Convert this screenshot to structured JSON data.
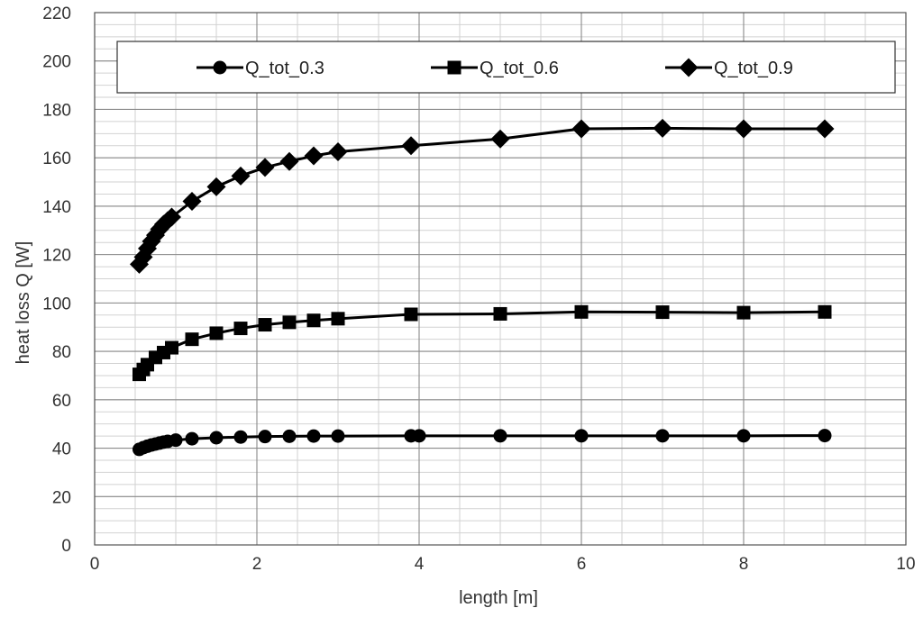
{
  "chart_data": {
    "type": "line",
    "xlabel": "length [m]",
    "ylabel": "heat loss Q [W]",
    "xlim": [
      0,
      10
    ],
    "ylim": [
      0,
      220
    ],
    "x_ticks": [
      "0",
      "2",
      "4",
      "6",
      "8",
      "10"
    ],
    "y_ticks": [
      "0",
      "20",
      "40",
      "60",
      "80",
      "100",
      "120",
      "140",
      "160",
      "180",
      "200",
      "220"
    ],
    "grid": true,
    "legend_position": "top",
    "series": [
      {
        "name": "Q_tot_0.3",
        "marker": "circle",
        "color": "#000000",
        "x": [
          0.55,
          0.6,
          0.65,
          0.7,
          0.75,
          0.8,
          0.85,
          0.9,
          1.0,
          1.2,
          1.5,
          1.8,
          2.1,
          2.4,
          2.7,
          3.0,
          3.9,
          4.0,
          5.0,
          6.0,
          7.0,
          8.0,
          9.0
        ],
        "y": [
          39.5,
          40.2,
          40.8,
          41.3,
          41.7,
          42.1,
          42.5,
          42.8,
          43.3,
          43.9,
          44.3,
          44.6,
          44.8,
          44.9,
          45.0,
          45.0,
          45.1,
          45.1,
          45.1,
          45.1,
          45.1,
          45.1,
          45.2
        ]
      },
      {
        "name": "Q_tot_0.6",
        "marker": "square",
        "color": "#000000",
        "x": [
          0.55,
          0.6,
          0.65,
          0.75,
          0.85,
          0.95,
          1.2,
          1.5,
          1.8,
          2.1,
          2.4,
          2.7,
          3.0,
          3.9,
          5.0,
          6.0,
          7.0,
          8.0,
          9.0
        ],
        "y": [
          70.5,
          72.5,
          74.5,
          77.5,
          79.5,
          81.5,
          85.0,
          87.5,
          89.5,
          91.0,
          92.0,
          92.8,
          93.5,
          95.3,
          95.5,
          96.3,
          96.2,
          96.0,
          96.3
        ]
      },
      {
        "name": "Q_tot_0.9",
        "marker": "diamond",
        "color": "#000000",
        "x": [
          0.55,
          0.6,
          0.65,
          0.7,
          0.75,
          0.8,
          0.85,
          0.9,
          0.95,
          1.2,
          1.5,
          1.8,
          2.1,
          2.4,
          2.7,
          3.0,
          3.9,
          5.0,
          6.0,
          7.0,
          8.0,
          9.0
        ],
        "y": [
          116.0,
          119.0,
          122.5,
          125.5,
          128.0,
          130.5,
          132.5,
          134.0,
          135.5,
          142.0,
          148.0,
          152.5,
          156.0,
          158.5,
          160.8,
          162.5,
          165.0,
          167.8,
          172.0,
          172.2,
          172.0,
          172.0
        ]
      }
    ]
  }
}
